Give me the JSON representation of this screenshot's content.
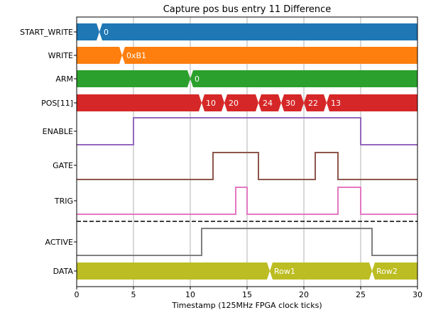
{
  "figure": {
    "title": "Capture pos bus entry 11 Difference",
    "xlabel": "Timestamp (125MHz FPGA clock ticks)"
  },
  "chart_data": {
    "type": "timing",
    "title": "Capture pos bus entry 11 Difference",
    "xlabel": "Timestamp (125MHz FPGA clock ticks)",
    "xlim": [
      0,
      30
    ],
    "xticks": [
      0,
      5,
      10,
      15,
      20,
      25,
      30
    ],
    "grid_x": true,
    "signals": [
      {
        "name": "START_WRITE",
        "kind": "bus",
        "color": "#1f77b4",
        "transitions": [
          {
            "t": 2,
            "label": "0"
          }
        ]
      },
      {
        "name": "WRITE",
        "kind": "bus",
        "color": "#ff7f0e",
        "transitions": [
          {
            "t": 4,
            "label": "0xB1"
          }
        ]
      },
      {
        "name": "ARM",
        "kind": "bus",
        "color": "#2ca02c",
        "transitions": [
          {
            "t": 10,
            "label": "0"
          }
        ]
      },
      {
        "name": "POS[11]",
        "kind": "bus",
        "color": "#d62728",
        "transitions": [
          {
            "t": 11,
            "label": "10"
          },
          {
            "t": 13,
            "label": "20"
          },
          {
            "t": 16,
            "label": "24"
          },
          {
            "t": 18,
            "label": "30"
          },
          {
            "t": 20,
            "label": "22"
          },
          {
            "t": 22,
            "label": "13"
          }
        ]
      },
      {
        "name": "ENABLE",
        "kind": "bit",
        "color": "#9467bd",
        "initial": 0,
        "edges": [
          5,
          25
        ]
      },
      {
        "name": "GATE",
        "kind": "bit",
        "color": "#8c564b",
        "initial": 0,
        "edges": [
          12,
          16,
          21,
          23
        ]
      },
      {
        "name": "TRIG",
        "kind": "bit",
        "color": "#e377c2",
        "initial": 0,
        "edges": [
          14,
          15,
          23,
          25
        ]
      },
      {
        "name": "ACTIVE",
        "kind": "bit",
        "color": "#7f7f7f",
        "initial": 0,
        "edges": [
          11,
          26
        ]
      },
      {
        "name": "DATA",
        "kind": "bus",
        "color": "#bcbd22",
        "transitions": [
          {
            "t": 17,
            "label": "Row1"
          },
          {
            "t": 26,
            "label": "Row2"
          }
        ]
      }
    ],
    "separator_after": "TRIG"
  }
}
